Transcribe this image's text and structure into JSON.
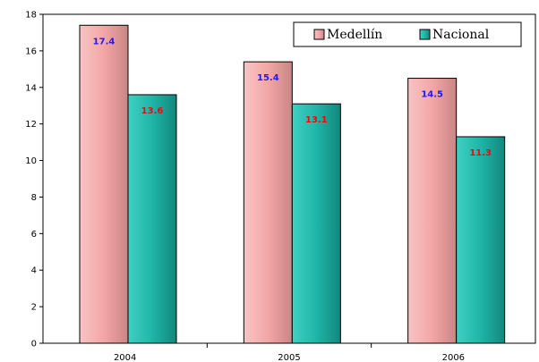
{
  "chart_data": {
    "type": "bar",
    "categories": [
      "2004",
      "2005",
      "2006"
    ],
    "series": [
      {
        "name": "Medellín",
        "values": [
          17.4,
          15.4,
          14.5
        ],
        "color": "#f4a6a6",
        "label_color": "#1a1aff"
      },
      {
        "name": "Nacional",
        "values": [
          13.6,
          13.1,
          11.3
        ],
        "color": "#1fb5a8",
        "label_color": "#e01010"
      }
    ],
    "title": "",
    "xlabel": "",
    "ylabel": "",
    "ylim": [
      0,
      18
    ],
    "yticks": [
      0,
      2,
      4,
      6,
      8,
      10,
      12,
      14,
      16,
      18
    ],
    "grid": false,
    "legend_position": "top-right",
    "data_labels": true
  }
}
